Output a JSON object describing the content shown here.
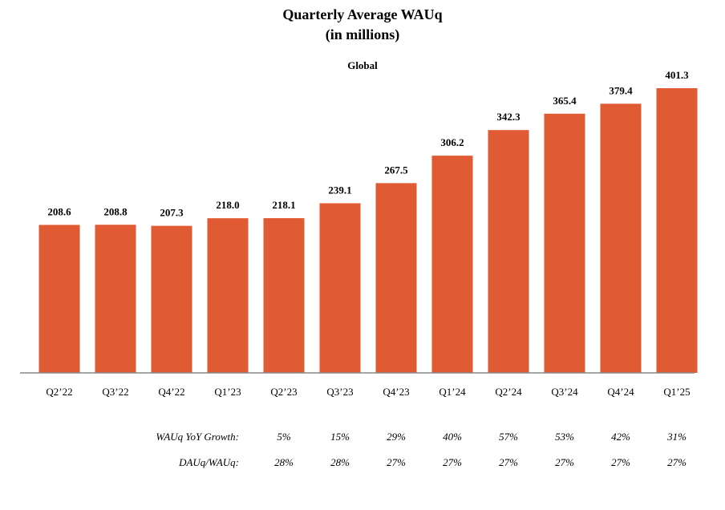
{
  "chart_data": {
    "type": "bar",
    "title": "Quarterly Average WAUq",
    "subtitle_units": "(in millions)",
    "subtitle": "Global",
    "categories": [
      "Q2’22",
      "Q3’22",
      "Q4’22",
      "Q1’23",
      "Q2’23",
      "Q3’23",
      "Q4’23",
      "Q1’24",
      "Q2’24",
      "Q3’24",
      "Q4’24",
      "Q1’25"
    ],
    "values": [
      208.6,
      208.8,
      207.3,
      218.0,
      218.1,
      239.1,
      267.5,
      306.2,
      342.3,
      365.4,
      379.4,
      401.3
    ],
    "value_labels": [
      "208.6",
      "208.8",
      "207.3",
      "218.0",
      "218.1",
      "239.1",
      "267.5",
      "306.2",
      "342.3",
      "365.4",
      "379.4",
      "401.3"
    ],
    "ylim": [
      0,
      416
    ],
    "bar_color": "#E05A33",
    "xlabel": "",
    "ylabel": "",
    "grid": false,
    "legend": "none"
  },
  "table_rows": [
    {
      "label": "WAUq YoY Growth:",
      "values": [
        "5%",
        "15%",
        "29%",
        "40%",
        "57%",
        "53%",
        "42%",
        "31%"
      ]
    },
    {
      "label": "DAUq/WAUq:",
      "values": [
        "28%",
        "28%",
        "27%",
        "27%",
        "27%",
        "27%",
        "27%",
        "27%"
      ]
    }
  ]
}
